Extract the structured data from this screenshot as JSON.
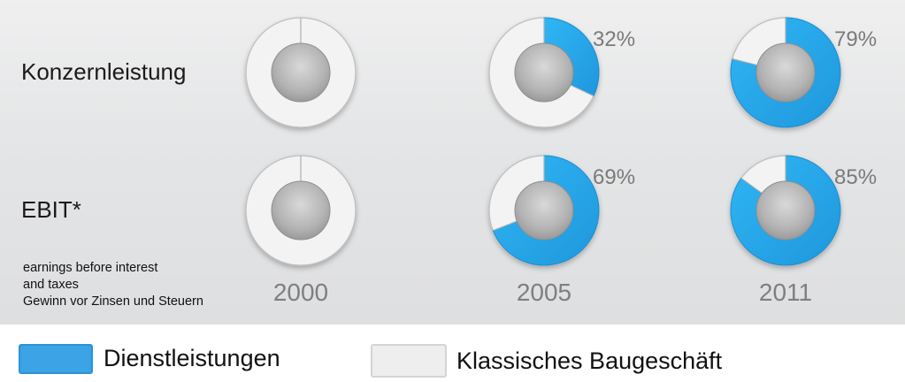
{
  "chart_data": {
    "type": "donut-grid",
    "rows": [
      {
        "label": "Konzernleistung",
        "values": [
          0,
          32,
          79
        ],
        "labels": [
          "",
          "32%",
          "79%"
        ]
      },
      {
        "label": "EBIT*",
        "values": [
          0,
          69,
          85
        ],
        "labels": [
          "",
          "69%",
          "85%"
        ]
      }
    ],
    "years": [
      "2000",
      "2005",
      "2011"
    ],
    "series": [
      {
        "name": "Dienstleistungen",
        "color": "#27a6e8"
      },
      {
        "name": "Klassisches Baugeschäft",
        "color": "#f1f1f1"
      }
    ]
  },
  "footnote": [
    "earnings before interest",
    "and taxes",
    "Gewinn vor Zinsen und Steuern"
  ],
  "legend": {
    "services_label": "Dienstleistungen",
    "classic_label": "Klassisches Baugeschäft",
    "services_color": "#3ba3e6",
    "classic_color": "#eeeeee"
  }
}
